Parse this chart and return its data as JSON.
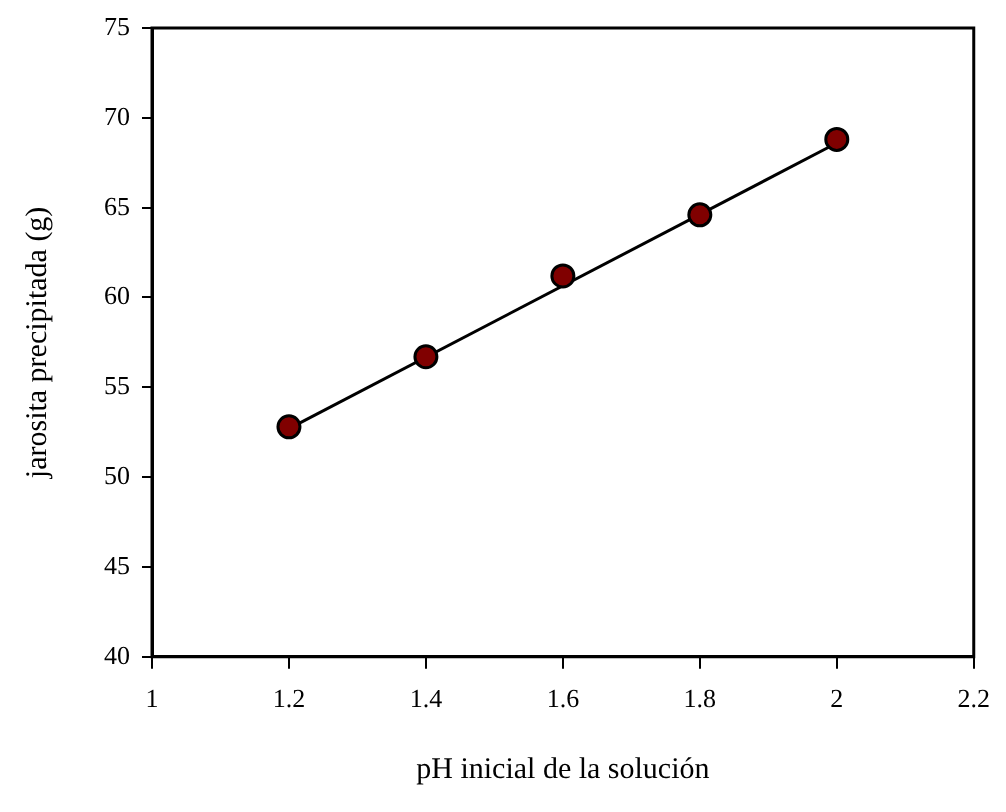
{
  "chart_data": {
    "type": "scatter",
    "xlabel": "pH inicial de la solución",
    "ylabel": "jarosita precipitada (g)",
    "x": [
      1.2,
      1.4,
      1.6,
      1.8,
      2.0
    ],
    "series": [
      {
        "type": "scatter",
        "color": "#800000",
        "values": [
          52.8,
          56.7,
          61.2,
          64.6,
          68.8
        ],
        "marker": "circle"
      },
      {
        "type": "line",
        "color": "#000000",
        "x": [
          1.2,
          2.0
        ],
        "values": [
          52.7,
          68.6
        ],
        "marker": "none",
        "line_style": "solid"
      }
    ],
    "xlim": [
      1,
      2.2
    ],
    "xticks": [
      1,
      1.2,
      1.4,
      1.6,
      1.8,
      2,
      2.2
    ],
    "ylim": [
      40,
      75
    ],
    "yticks": [
      40,
      45,
      50,
      55,
      60,
      65,
      70,
      75
    ],
    "grid": false,
    "legend": false
  }
}
